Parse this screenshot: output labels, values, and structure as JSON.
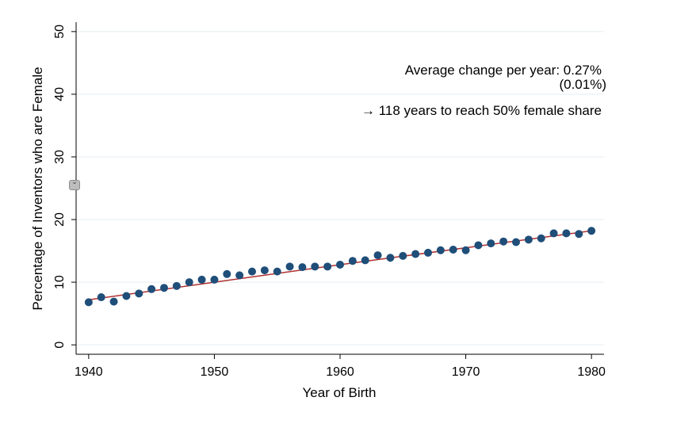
{
  "chart_data": {
    "type": "scatter",
    "xlabel": "Year of Birth",
    "ylabel": "Percentage of Inventors who are Female",
    "xlim": [
      1939,
      1981
    ],
    "ylim": [
      -1.5,
      51.5
    ],
    "xticks": [
      1940,
      1950,
      1960,
      1970,
      1980
    ],
    "yticks": [
      0,
      10,
      20,
      30,
      40,
      50
    ],
    "grid": "horizontal",
    "legend": "none",
    "marker_color": "#1f4e79",
    "fit_color": "#b03030",
    "series": [
      {
        "x": [
          1940,
          1941,
          1942,
          1943,
          1944,
          1945,
          1946,
          1947,
          1948,
          1949,
          1950,
          1951,
          1952,
          1953,
          1954,
          1955,
          1956,
          1957,
          1958,
          1959,
          1960,
          1961,
          1962,
          1963,
          1964,
          1965,
          1966,
          1967,
          1968,
          1969,
          1970,
          1971,
          1972,
          1973,
          1974,
          1975,
          1976,
          1977,
          1978,
          1979,
          1980
        ],
        "y": [
          6.8,
          7.6,
          6.9,
          7.8,
          8.2,
          8.9,
          9.1,
          9.4,
          10.0,
          10.4,
          10.4,
          11.3,
          11.1,
          11.7,
          11.9,
          11.7,
          12.5,
          12.4,
          12.5,
          12.5,
          12.8,
          13.4,
          13.5,
          14.3,
          13.9,
          14.2,
          14.5,
          14.7,
          15.1,
          15.2,
          15.1,
          15.9,
          16.2,
          16.5,
          16.4,
          16.8,
          17.0,
          17.8,
          17.8,
          17.7,
          18.2
        ]
      }
    ],
    "fit_line": {
      "x": [
        1940,
        1960,
        1980
      ],
      "y": [
        7.2,
        12.8,
        18.2
      ]
    },
    "annotations": [
      "Average change per year: 0.27%",
      "(0.01%)",
      "→ 118 years to reach 50% female share"
    ]
  }
}
